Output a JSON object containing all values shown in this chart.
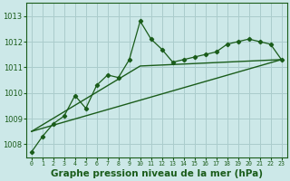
{
  "background_color": "#cce8e8",
  "grid_color": "#aacccc",
  "line_color": "#1a5c1a",
  "title": "Graphe pression niveau de la mer (hPa)",
  "title_fontsize": 7.5,
  "xlim": [
    -0.5,
    23.5
  ],
  "ylim": [
    1007.5,
    1013.5
  ],
  "yticks": [
    1008,
    1009,
    1010,
    1011,
    1012,
    1013
  ],
  "xticks": [
    0,
    1,
    2,
    3,
    4,
    5,
    6,
    7,
    8,
    9,
    10,
    11,
    12,
    13,
    14,
    15,
    16,
    17,
    18,
    19,
    20,
    21,
    22,
    23
  ],
  "series1_x": [
    0,
    1,
    2,
    3,
    4,
    5,
    6,
    7,
    8,
    9,
    10,
    11,
    12,
    13,
    14,
    15,
    16,
    17,
    18,
    19,
    20,
    21,
    22,
    23
  ],
  "series1_y": [
    1007.7,
    1008.3,
    1008.8,
    1009.1,
    1009.9,
    1009.4,
    1010.3,
    1010.7,
    1010.6,
    1011.3,
    1012.8,
    1012.1,
    1011.7,
    1011.2,
    1011.3,
    1011.4,
    1011.5,
    1011.6,
    1011.9,
    1012.0,
    1012.1,
    1012.0,
    1011.9,
    1011.3
  ],
  "series2_x": [
    0,
    23
  ],
  "series2_y": [
    1008.5,
    1011.3
  ],
  "series3_x": [
    0,
    10,
    23
  ],
  "series3_y": [
    1008.5,
    1011.05,
    1011.3
  ]
}
